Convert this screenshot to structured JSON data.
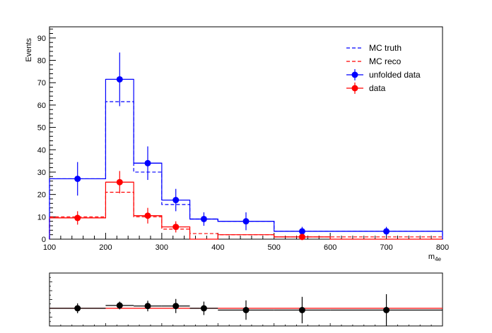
{
  "chart_data": [
    {
      "type": "histogram",
      "ylabel": "Events",
      "xlabel_base": "m",
      "xlabel_sub": "4e",
      "xlim": [
        100,
        800
      ],
      "ylim": [
        0,
        95
      ],
      "x_ticks": [
        "100",
        "200",
        "300",
        "400",
        "500",
        "600",
        "700",
        "800"
      ],
      "y_ticks": [
        "0",
        "10",
        "20",
        "30",
        "40",
        "50",
        "60",
        "70",
        "80",
        "90"
      ],
      "bin_edges": [
        100,
        200,
        250,
        300,
        350,
        400,
        500,
        600,
        800
      ],
      "legend_position": "top-right",
      "series": [
        {
          "name": "MC truth",
          "style": "dashed-step",
          "color": "#0000ff",
          "values": [
            27,
            61.5,
            30,
            15.5,
            9,
            8,
            3.5,
            3.5
          ]
        },
        {
          "name": "MC reco",
          "style": "dashed-step",
          "color": "#ff0000",
          "values": [
            10,
            21,
            10,
            4.5,
            2.5,
            2,
            1,
            1
          ]
        },
        {
          "name": "unfolded data",
          "style": "markers",
          "color": "#0000ff",
          "values": [
            27,
            71.5,
            34,
            17.5,
            9,
            8,
            3.5,
            3.5
          ],
          "errors": [
            7.5,
            12,
            7.5,
            5,
            3,
            4,
            2,
            2
          ]
        },
        {
          "name": "data",
          "style": "markers",
          "color": "#ff0000",
          "values": [
            9.5,
            25.5,
            10.5,
            5.5,
            0,
            0,
            1,
            0
          ],
          "errors": [
            3,
            5,
            3.5,
            2.5,
            0,
            0,
            1,
            0
          ]
        },
        {
          "style": "solid-step",
          "color": "#ff0000",
          "values": [
            9.5,
            25.5,
            10.5,
            5.5,
            0,
            2,
            1,
            0
          ]
        },
        {
          "style": "solid-step",
          "color": "#0000ff",
          "values": [
            27,
            71.5,
            34,
            17.5,
            9,
            8,
            3.5,
            3.5
          ]
        }
      ]
    },
    {
      "type": "ratio",
      "xlim": [
        100,
        800
      ],
      "ylim": [
        0,
        3
      ],
      "reference_line": 1,
      "reference_color": "#ff0000",
      "points": [
        {
          "x": 150,
          "y": 1.0,
          "xerr": 50,
          "yerr": 0.28
        },
        {
          "x": 225,
          "y": 1.16,
          "xerr": 25,
          "yerr": 0.22
        },
        {
          "x": 275,
          "y": 1.13,
          "xerr": 25,
          "yerr": 0.3
        },
        {
          "x": 325,
          "y": 1.13,
          "xerr": 25,
          "yerr": 0.4
        },
        {
          "x": 375,
          "y": 1.0,
          "xerr": 25,
          "yerr": 0.38
        },
        {
          "x": 450,
          "y": 0.9,
          "xerr": 50,
          "yerr": 0.55
        },
        {
          "x": 550,
          "y": 0.9,
          "xerr": 50,
          "yerr": 0.75
        },
        {
          "x": 700,
          "y": 0.9,
          "xerr": 100,
          "yerr": 0.9
        }
      ]
    }
  ]
}
